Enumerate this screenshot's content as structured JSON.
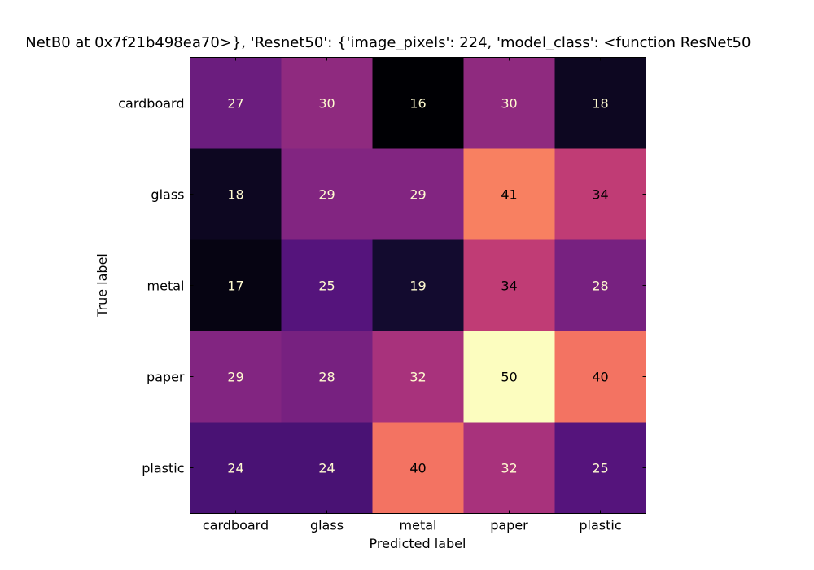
{
  "chart_data": {
    "type": "heatmap",
    "title": "NetB0 at 0x7f21b498ea70>}, 'Resnet50': {'image_pixels': 224, 'model_class': <function ResNet50",
    "xlabel": "Predicted label",
    "ylabel": "True label",
    "x_categories": [
      "cardboard",
      "glass",
      "metal",
      "paper",
      "plastic"
    ],
    "y_categories": [
      "cardboard",
      "glass",
      "metal",
      "paper",
      "plastic"
    ],
    "values": [
      [
        27,
        30,
        16,
        30,
        18
      ],
      [
        18,
        29,
        29,
        41,
        34
      ],
      [
        17,
        25,
        19,
        34,
        28
      ],
      [
        29,
        28,
        32,
        50,
        40
      ],
      [
        24,
        24,
        40,
        32,
        25
      ]
    ],
    "colormap": "magma",
    "vmin": 16,
    "vmax": 50,
    "grid": false,
    "legend": "none"
  }
}
